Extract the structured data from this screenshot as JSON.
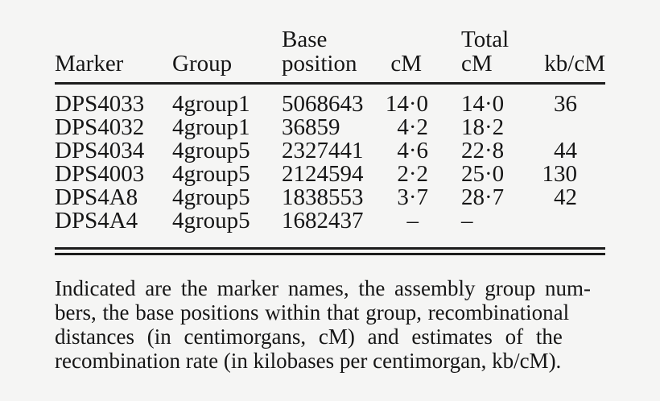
{
  "page": {
    "background_color": "#f5f5f4",
    "text_color": "#161616",
    "rule_color": "#1c1c1c"
  },
  "table": {
    "header": {
      "marker": "Marker",
      "group": "Group",
      "base_position_line1": "Base",
      "base_position_line2": "position",
      "cm": "cM",
      "total_cm_line1": "Total",
      "total_cm_line2": "cM",
      "kb_per_cm": "kb/cM"
    },
    "rows": [
      {
        "marker": "DPS4033",
        "group": "4group1",
        "base_position": "5068643",
        "cm": "14·0",
        "total_cm": "14·0",
        "kb_per_cm": "36"
      },
      {
        "marker": "DPS4032",
        "group": "4group1",
        "base_position": "36859",
        "cm": "4·2",
        "total_cm": "18·2",
        "kb_per_cm": ""
      },
      {
        "marker": "DPS4034",
        "group": "4group5",
        "base_position": "2327441",
        "cm": "4·6",
        "total_cm": "22·8",
        "kb_per_cm": "44"
      },
      {
        "marker": "DPS4003",
        "group": "4group5",
        "base_position": "2124594",
        "cm": "2·2",
        "total_cm": "25·0",
        "kb_per_cm": "130"
      },
      {
        "marker": "DPS4A8",
        "group": "4group5",
        "base_position": "1838553",
        "cm": "3·7",
        "total_cm": "28·7",
        "kb_per_cm": "42"
      },
      {
        "marker": "DPS4A4",
        "group": "4group5",
        "base_position": "1682437",
        "cm": "–",
        "total_cm": "–",
        "kb_per_cm": ""
      }
    ]
  },
  "caption": {
    "lines": [
      "Indicated are the marker names, the assembly group num-",
      "bers, the base positions within that group, recombinational",
      "distances (in centimorgans, cM) and estimates of the",
      "recombination rate (in kilobases per centimorgan, kb/cM)."
    ]
  }
}
